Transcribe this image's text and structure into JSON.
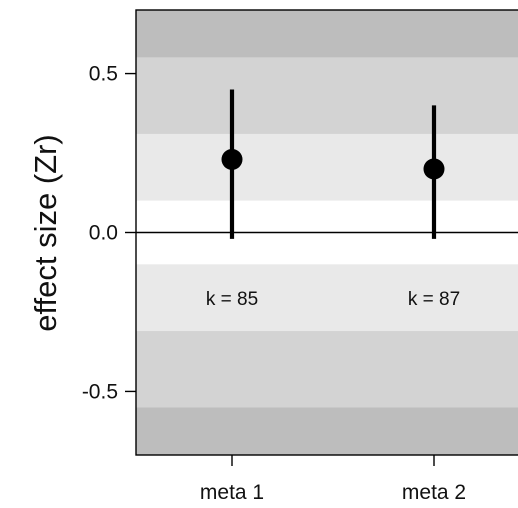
{
  "chart_data": {
    "type": "scatter",
    "title": "",
    "xlabel": "",
    "ylabel": "effect size (Zr)",
    "ylim": [
      -0.7,
      0.7
    ],
    "yticks": [
      {
        "value": -0.5,
        "label": "-0.5"
      },
      {
        "value": 0.0,
        "label": "0.0"
      },
      {
        "value": 0.5,
        "label": "0.5"
      }
    ],
    "categories": [
      "meta 1",
      "meta 2"
    ],
    "estimates": [
      0.23,
      0.2
    ],
    "ci_lower": [
      -0.02,
      -0.02
    ],
    "ci_upper": [
      0.45,
      0.4
    ],
    "counts": [
      "k = 85",
      "k = 87"
    ],
    "reference_line": 0.0,
    "background_bands": [
      {
        "from": 0.55,
        "to": 0.7,
        "color": "#bdbdbd"
      },
      {
        "from": 0.31,
        "to": 0.55,
        "color": "#d3d3d3"
      },
      {
        "from": 0.1,
        "to": 0.31,
        "color": "#e9e9e9"
      },
      {
        "from": -0.1,
        "to": 0.1,
        "color": "#ffffff"
      },
      {
        "from": -0.31,
        "to": -0.1,
        "color": "#e9e9e9"
      },
      {
        "from": -0.55,
        "to": -0.31,
        "color": "#d3d3d3"
      },
      {
        "from": -0.7,
        "to": -0.55,
        "color": "#bdbdbd"
      }
    ],
    "grid": false,
    "legend": "none",
    "colors": {
      "mark": "#000000",
      "axis": "#000000"
    }
  }
}
